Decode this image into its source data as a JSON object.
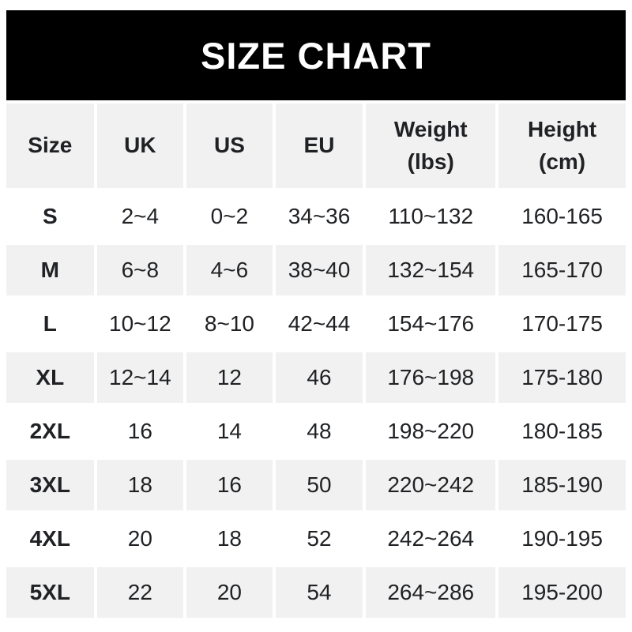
{
  "title": "SIZE CHART",
  "colors": {
    "banner_bg": "#000000",
    "banner_text": "#ffffff",
    "row_gray": "#f1f1f1",
    "row_white": "#ffffff",
    "text": "#1f2124"
  },
  "chart_data": {
    "type": "table",
    "title": "SIZE CHART",
    "columns": [
      {
        "label": "Size",
        "sub": ""
      },
      {
        "label": "UK",
        "sub": ""
      },
      {
        "label": "US",
        "sub": ""
      },
      {
        "label": "EU",
        "sub": ""
      },
      {
        "label": "Weight",
        "sub": "(lbs)"
      },
      {
        "label": "Height",
        "sub": "(cm)"
      }
    ],
    "rows": [
      {
        "size": "S",
        "uk": "2~4",
        "us": "0~2",
        "eu": "34~36",
        "weight_lbs": "110~132",
        "height_cm": "160-165"
      },
      {
        "size": "M",
        "uk": "6~8",
        "us": "4~6",
        "eu": "38~40",
        "weight_lbs": "132~154",
        "height_cm": "165-170"
      },
      {
        "size": "L",
        "uk": "10~12",
        "us": "8~10",
        "eu": "42~44",
        "weight_lbs": "154~176",
        "height_cm": "170-175"
      },
      {
        "size": "XL",
        "uk": "12~14",
        "us": "12",
        "eu": "46",
        "weight_lbs": "176~198",
        "height_cm": "175-180"
      },
      {
        "size": "2XL",
        "uk": "16",
        "us": "14",
        "eu": "48",
        "weight_lbs": "198~220",
        "height_cm": "180-185"
      },
      {
        "size": "3XL",
        "uk": "18",
        "us": "16",
        "eu": "50",
        "weight_lbs": "220~242",
        "height_cm": "185-190"
      },
      {
        "size": "4XL",
        "uk": "20",
        "us": "18",
        "eu": "52",
        "weight_lbs": "242~264",
        "height_cm": "190-195"
      },
      {
        "size": "5XL",
        "uk": "22",
        "us": "20",
        "eu": "54",
        "weight_lbs": "264~286",
        "height_cm": "195-200"
      }
    ]
  }
}
